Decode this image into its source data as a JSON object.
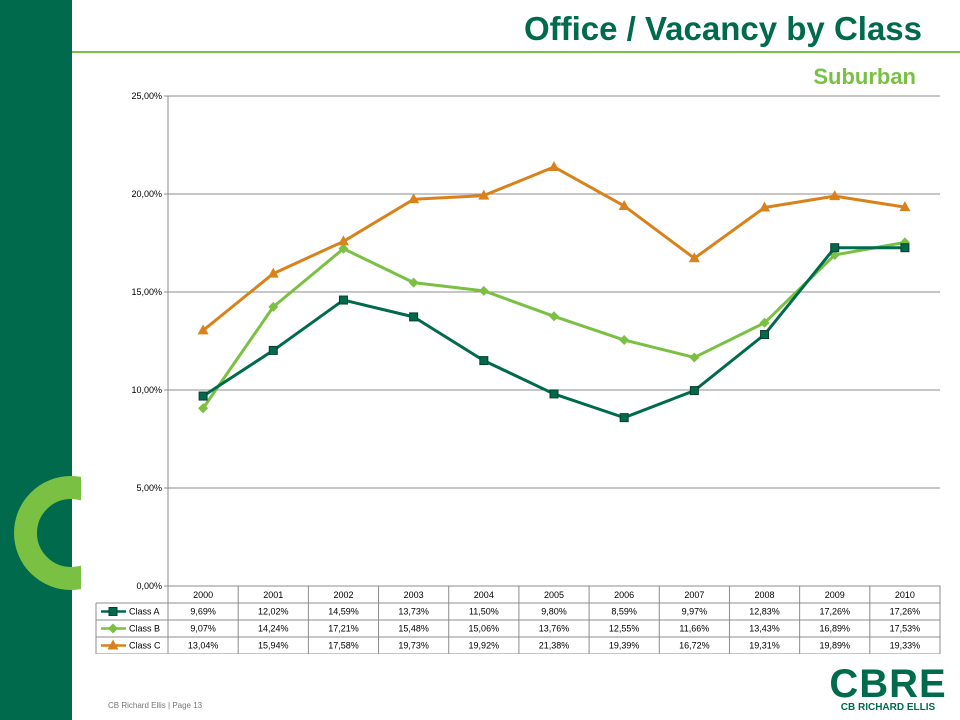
{
  "header": {
    "title": "Office / Vacancy by Class",
    "subtitle": "Suburban"
  },
  "footer": {
    "text": "CB Richard Ellis | Page 13"
  },
  "logo": {
    "main": "CBRE",
    "sub": "CB RICHARD ELLIS"
  },
  "colors": {
    "brand_green": "#006a4d",
    "accent_green": "#7ac043",
    "orange": "#d9821b"
  },
  "chart_data": {
    "type": "line",
    "title": "",
    "xlabel": "",
    "ylabel": "",
    "ylim": [
      0,
      25
    ],
    "yticks": [
      "0,00%",
      "5,00%",
      "10,00%",
      "15,00%",
      "20,00%",
      "25,00%"
    ],
    "grid": true,
    "legend": "data-table",
    "categories": [
      "2000",
      "2001",
      "2002",
      "2003",
      "2004",
      "2005",
      "2006",
      "2007",
      "2008",
      "2009",
      "2010"
    ],
    "series": [
      {
        "name": "Class A",
        "color": "#006a4d",
        "marker": "square",
        "values": [
          9.69,
          12.02,
          14.59,
          13.73,
          11.5,
          9.8,
          8.59,
          9.97,
          12.83,
          17.26,
          17.26
        ],
        "labels": [
          "9,69%",
          "12,02%",
          "14,59%",
          "13,73%",
          "11,50%",
          "9,80%",
          "8,59%",
          "9,97%",
          "12,83%",
          "17,26%",
          "17,26%"
        ]
      },
      {
        "name": "Class B",
        "color": "#7ac043",
        "marker": "diamond",
        "values": [
          9.07,
          14.24,
          17.21,
          15.48,
          15.06,
          13.76,
          12.55,
          11.66,
          13.43,
          16.89,
          17.53
        ],
        "labels": [
          "9,07%",
          "14,24%",
          "17,21%",
          "15,48%",
          "15,06%",
          "13,76%",
          "12,55%",
          "11,66%",
          "13,43%",
          "16,89%",
          "17,53%"
        ]
      },
      {
        "name": "Class C",
        "color": "#d9821b",
        "marker": "triangle",
        "values": [
          13.04,
          15.94,
          17.58,
          19.73,
          19.92,
          21.38,
          19.39,
          16.72,
          19.31,
          19.89,
          19.33
        ],
        "labels": [
          "13,04%",
          "15,94%",
          "17,58%",
          "19,73%",
          "19,92%",
          "21,38%",
          "19,39%",
          "16,72%",
          "19,31%",
          "19,89%",
          "19,33%"
        ]
      }
    ]
  }
}
